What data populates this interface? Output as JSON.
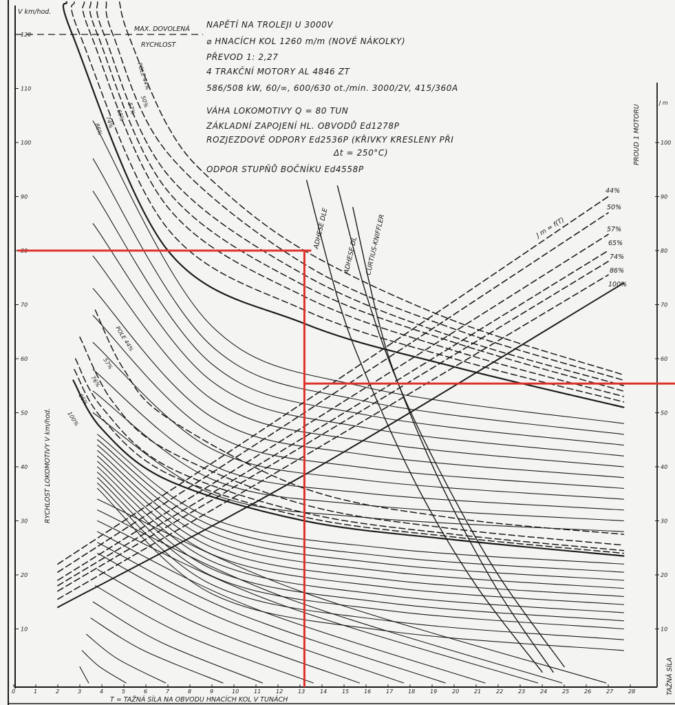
{
  "chart_data": {
    "type": "line",
    "title": "",
    "xlabel": "T = TAŽNÁ SÍLA NA OBVODU HNACÍCH KOL V TUNÁCH",
    "ylabel": "RYCHLOST LOKOMOTIVY V km/hod.",
    "y_unit_label": "V km/hod.",
    "y2label": "PROUD 1 MOTORU",
    "y2_unit_label": "J m",
    "y2_bottom_label": "TAŽNÁ SÍLA",
    "xlim": [
      0,
      28
    ],
    "ylim": [
      0,
      120
    ],
    "x_ticks": [
      "0",
      "1",
      "2",
      "3",
      "4",
      "5",
      "6",
      "7",
      "8",
      "9",
      "10",
      "11",
      "12",
      "13",
      "14",
      "15",
      "16",
      "17",
      "18",
      "19",
      "20",
      "21",
      "22",
      "23",
      "24",
      "25",
      "26",
      "27",
      "28"
    ],
    "y_ticks": [
      "10",
      "20",
      "30",
      "40",
      "50",
      "60",
      "70",
      "80",
      "90",
      "100",
      "110",
      "120"
    ],
    "y2_ticks": [
      "10",
      "20",
      "30",
      "40",
      "50",
      "60",
      "70",
      "80",
      "90",
      "100"
    ],
    "grid": false,
    "ink_color": "#1a1a1a",
    "highlight_color": "#e0302a",
    "max_speed_line": {
      "v": 120,
      "label_1": "MAX. DOVOLENÁ",
      "label_2": "RYCHLOST"
    },
    "highlight_lines": {
      "T": 13.2,
      "v_upper": 80,
      "v_lower": 55.4
    },
    "notes": [
      "NAPĚTÍ NA TROLEJI U 3000V",
      "⌀ HNACÍCH KOL 1260 m/m (NOVÉ NÁKOLKY)",
      "PŘEVOD 1: 2,27",
      "4 TRAKČNÍ MOTORY AL 4846 ZT",
      "586/508 kW, 60/∞, 600/630 ot./min. 3000/2V, 415/360A",
      "VÁHA LOKOMOTIVY Q = 80 TUN",
      "ZÁKLADNÍ ZAPOJENÍ HL. OBVODŮ Ed1278P",
      "ROZJEZDOVÉ ODPORY Ed2536P (KŘIVKY KRESLENY PŘI",
      "Δt = 250°C)",
      "ODPOR STUPŇŮ BOČNÍKU Ed4558P"
    ],
    "parallel_field_curves": [
      {
        "name": "100%",
        "dashed": false,
        "points": [
          [
            2.4,
            126
          ],
          [
            2.66,
            120
          ],
          [
            7,
            80
          ],
          [
            13.2,
            66.5
          ],
          [
            20,
            58.5
          ],
          [
            27.7,
            51
          ]
        ]
      },
      {
        "name": "86%",
        "dashed": true,
        "points": [
          [
            2.75,
            126
          ],
          [
            3.0,
            120
          ],
          [
            7,
            84
          ],
          [
            13.2,
            69
          ],
          [
            20,
            60
          ],
          [
            27.7,
            52
          ]
        ]
      },
      {
        "name": "74%",
        "dashed": true,
        "points": [
          [
            3.2,
            126
          ],
          [
            3.5,
            120
          ],
          [
            7,
            88
          ],
          [
            13.2,
            71.5
          ],
          [
            20,
            61.5
          ],
          [
            27.7,
            53
          ]
        ]
      },
      {
        "name": "65%",
        "dashed": true,
        "points": [
          [
            3.5,
            126
          ],
          [
            3.8,
            120
          ],
          [
            7,
            91
          ],
          [
            13.2,
            73.5
          ],
          [
            20,
            63
          ],
          [
            27.7,
            54
          ]
        ]
      },
      {
        "name": "57%",
        "dashed": true,
        "points": [
          [
            3.8,
            126
          ],
          [
            4.1,
            120
          ],
          [
            7,
            94
          ],
          [
            13.2,
            75.5
          ],
          [
            20,
            64
          ],
          [
            27.7,
            55
          ]
        ]
      },
      {
        "name": "50%",
        "dashed": true,
        "points": [
          [
            4.2,
            126
          ],
          [
            4.5,
            120
          ],
          [
            7,
            98
          ],
          [
            13.2,
            77.5
          ],
          [
            20,
            65.5
          ],
          [
            27.7,
            56
          ]
        ]
      },
      {
        "name": "POLE 44%",
        "dashed": true,
        "points": [
          [
            4.8,
            126
          ],
          [
            5.2,
            120
          ],
          [
            7,
            103
          ],
          [
            9,
            93
          ],
          [
            13.2,
            80
          ],
          [
            20,
            67
          ],
          [
            27.7,
            57
          ]
        ]
      }
    ],
    "series_field_curves": [
      {
        "name": "100%",
        "dashed": false,
        "points": [
          [
            2.7,
            56
          ],
          [
            4,
            47
          ],
          [
            7,
            37.5
          ],
          [
            13.2,
            30
          ],
          [
            20,
            26.5
          ],
          [
            27.7,
            23.5
          ]
        ]
      },
      {
        "name": "86%",
        "dashed": true,
        "points": [
          [
            2.75,
            58
          ],
          [
            4,
            49
          ],
          [
            7,
            38.7
          ],
          [
            13.2,
            30.7
          ],
          [
            20,
            27
          ],
          [
            27.7,
            24
          ]
        ]
      },
      {
        "name": "76%",
        "dashed": true,
        "points": [
          [
            2.8,
            60
          ],
          [
            4,
            51
          ],
          [
            7,
            40
          ],
          [
            13.2,
            31.5
          ],
          [
            20,
            27.5
          ],
          [
            27.7,
            24.5
          ]
        ]
      },
      {
        "name": "57%",
        "dashed": true,
        "points": [
          [
            3.0,
            64
          ],
          [
            4.5,
            52
          ],
          [
            7,
            43
          ],
          [
            13.2,
            33
          ],
          [
            20,
            28.5
          ],
          [
            27.7,
            25.5
          ]
        ]
      },
      {
        "name": "POLE 44%",
        "dashed": true,
        "points": [
          [
            3.7,
            69
          ],
          [
            5,
            58
          ],
          [
            7,
            49
          ],
          [
            13.2,
            36
          ],
          [
            20,
            30.5
          ],
          [
            27.7,
            27.5
          ]
        ]
      }
    ],
    "parallel_resistance_steps": [
      [
        [
          3.6,
          104
        ],
        [
          9,
          66
        ],
        [
          16,
          54.7
        ],
        [
          27.7,
          48
        ]
      ],
      [
        [
          3.6,
          97
        ],
        [
          9,
          62.3
        ],
        [
          16,
          52.1
        ],
        [
          27.7,
          46
        ]
      ],
      [
        [
          3.6,
          91
        ],
        [
          9,
          59
        ],
        [
          16,
          49.6
        ],
        [
          27.7,
          44
        ]
      ],
      [
        [
          3.6,
          85
        ],
        [
          9,
          55.8
        ],
        [
          16,
          47.2
        ],
        [
          27.7,
          42
        ]
      ],
      [
        [
          3.6,
          79
        ],
        [
          9,
          52.5
        ],
        [
          16,
          44.7
        ],
        [
          27.7,
          40
        ]
      ],
      [
        [
          3.6,
          73
        ],
        [
          9,
          49.2
        ],
        [
          16,
          42.2
        ],
        [
          27.7,
          38
        ]
      ],
      [
        [
          3.6,
          68
        ],
        [
          9,
          46.2
        ],
        [
          16,
          39.8
        ],
        [
          27.7,
          36
        ]
      ],
      [
        [
          3.6,
          63
        ],
        [
          9,
          43.3
        ],
        [
          16,
          37.5
        ],
        [
          27.7,
          34
        ]
      ],
      [
        [
          3.6,
          58
        ],
        [
          9,
          40.3
        ],
        [
          16,
          35.1
        ],
        [
          27.7,
          32
        ]
      ],
      [
        [
          3.6,
          54
        ],
        [
          9,
          37.7
        ],
        [
          16,
          32.9
        ],
        [
          27.7,
          30
        ]
      ],
      [
        [
          3.6,
          50
        ],
        [
          9,
          35
        ],
        [
          16,
          30.6
        ],
        [
          27.7,
          28
        ]
      ]
    ],
    "series_resistance_steps": [
      [
        [
          3.8,
          46
        ],
        [
          9,
          30.4
        ],
        [
          17,
          24.9
        ],
        [
          27.7,
          22
        ]
      ],
      [
        [
          3.8,
          45
        ],
        [
          9,
          29.1
        ],
        [
          17,
          23.4
        ],
        [
          27.7,
          20.5
        ]
      ],
      [
        [
          3.8,
          44
        ],
        [
          9,
          27.8
        ],
        [
          17,
          22
        ],
        [
          27.7,
          19
        ]
      ],
      [
        [
          3.8,
          43
        ],
        [
          9,
          26.4
        ],
        [
          17,
          20.6
        ],
        [
          27.7,
          17.5
        ]
      ],
      [
        [
          3.8,
          42
        ],
        [
          9,
          25.1
        ],
        [
          17,
          19.1
        ],
        [
          27.7,
          16
        ]
      ],
      [
        [
          3.8,
          41
        ],
        [
          9,
          23.8
        ],
        [
          17,
          17.7
        ],
        [
          27.7,
          14.5
        ]
      ],
      [
        [
          3.8,
          40
        ],
        [
          9,
          22.5
        ],
        [
          17,
          16.2
        ],
        [
          27.7,
          13
        ]
      ],
      [
        [
          3.8,
          39
        ],
        [
          9,
          21.1
        ],
        [
          17,
          14.8
        ],
        [
          27.7,
          11.5
        ]
      ],
      [
        [
          3.8,
          38
        ],
        [
          9,
          19.8
        ],
        [
          17,
          13.4
        ],
        [
          27.7,
          10
        ]
      ],
      [
        [
          3.8,
          37
        ],
        [
          9,
          18.2
        ],
        [
          17,
          11.5
        ],
        [
          27.7,
          8
        ]
      ],
      [
        [
          3.8,
          36
        ],
        [
          9,
          16.5
        ],
        [
          17,
          9.6
        ],
        [
          27.7,
          6
        ]
      ],
      [
        [
          3.8,
          34
        ],
        [
          13.0,
          17
        ],
        [
          26.9,
          0
        ]
      ],
      [
        [
          3.8,
          32
        ],
        [
          12.2,
          16
        ],
        [
          24.9,
          0
        ]
      ],
      [
        [
          3.8,
          30
        ],
        [
          11.8,
          15
        ],
        [
          23.8,
          0
        ]
      ],
      [
        [
          3.8,
          28
        ],
        [
          10.8,
          14
        ],
        [
          21.4,
          0
        ]
      ],
      [
        [
          3.8,
          26
        ],
        [
          10.1,
          13
        ],
        [
          19.6,
          0
        ]
      ],
      [
        [
          3.8,
          24
        ],
        [
          9.4,
          12
        ],
        [
          17.7,
          0
        ]
      ],
      [
        [
          3.8,
          21
        ],
        [
          8.6,
          10.5
        ],
        [
          15.7,
          0
        ]
      ],
      [
        [
          3.7,
          18
        ],
        [
          7.7,
          9
        ],
        [
          13.6,
          0
        ]
      ],
      [
        [
          3.6,
          15
        ],
        [
          6.7,
          7.5
        ],
        [
          11.3,
          0
        ]
      ],
      [
        [
          3.5,
          12
        ],
        [
          5.9,
          6
        ],
        [
          9.5,
          0
        ]
      ],
      [
        [
          3.3,
          9
        ],
        [
          4.7,
          4.5
        ],
        [
          6.9,
          0
        ]
      ],
      [
        [
          3.1,
          6
        ],
        [
          3.9,
          3
        ],
        [
          5.1,
          0
        ]
      ],
      [
        [
          3.0,
          3
        ],
        [
          3.2,
          1.5
        ],
        [
          3.4,
          0
        ]
      ]
    ],
    "adhesion_curves": [
      {
        "name": "ADHESE DLE",
        "points": [
          [
            13.3,
            93
          ],
          [
            14.8,
            70
          ],
          [
            16.2,
            55
          ],
          [
            18.5,
            35
          ],
          [
            21,
            18
          ],
          [
            24,
            2
          ]
        ]
      },
      {
        "name": "ADHESE DL",
        "points": [
          [
            14.7,
            92
          ],
          [
            16,
            72
          ],
          [
            17.5,
            55
          ],
          [
            19.5,
            38
          ],
          [
            22,
            20
          ],
          [
            25,
            3
          ]
        ]
      },
      {
        "name": "CURTIUS-KNIFFLER",
        "points": [
          [
            15.4,
            88
          ],
          [
            16.5,
            68
          ],
          [
            17.5,
            55
          ],
          [
            19.5,
            36
          ],
          [
            22,
            17
          ],
          [
            24.5,
            2
          ]
        ]
      }
    ],
    "current_curves_label": "J m = f(T)",
    "current_curves": [
      {
        "name": "44%",
        "dashed": true,
        "points": [
          [
            2,
            22
          ],
          [
            13.2,
            52
          ],
          [
            27,
            90
          ]
        ]
      },
      {
        "name": "50%",
        "dashed": true,
        "points": [
          [
            2,
            20.5
          ],
          [
            13.2,
            50
          ],
          [
            27,
            87
          ]
        ]
      },
      {
        "name": "57%",
        "dashed": true,
        "points": [
          [
            2,
            19
          ],
          [
            13.2,
            47.5
          ],
          [
            27,
            83
          ]
        ]
      },
      {
        "name": "65%",
        "dashed": true,
        "points": [
          [
            2,
            18
          ],
          [
            13.2,
            45.5
          ],
          [
            27,
            80
          ]
        ]
      },
      {
        "name": "74%",
        "dashed": true,
        "points": [
          [
            2,
            17
          ],
          [
            13.2,
            44
          ],
          [
            27,
            78
          ]
        ]
      },
      {
        "name": "86%",
        "dashed": true,
        "points": [
          [
            2,
            15.5
          ],
          [
            13.2,
            42
          ],
          [
            27,
            75.5
          ]
        ]
      },
      {
        "name": "100%",
        "dashed": false,
        "points": [
          [
            2,
            14
          ],
          [
            13.2,
            38.5
          ],
          [
            27.7,
            74
          ]
        ]
      }
    ]
  }
}
